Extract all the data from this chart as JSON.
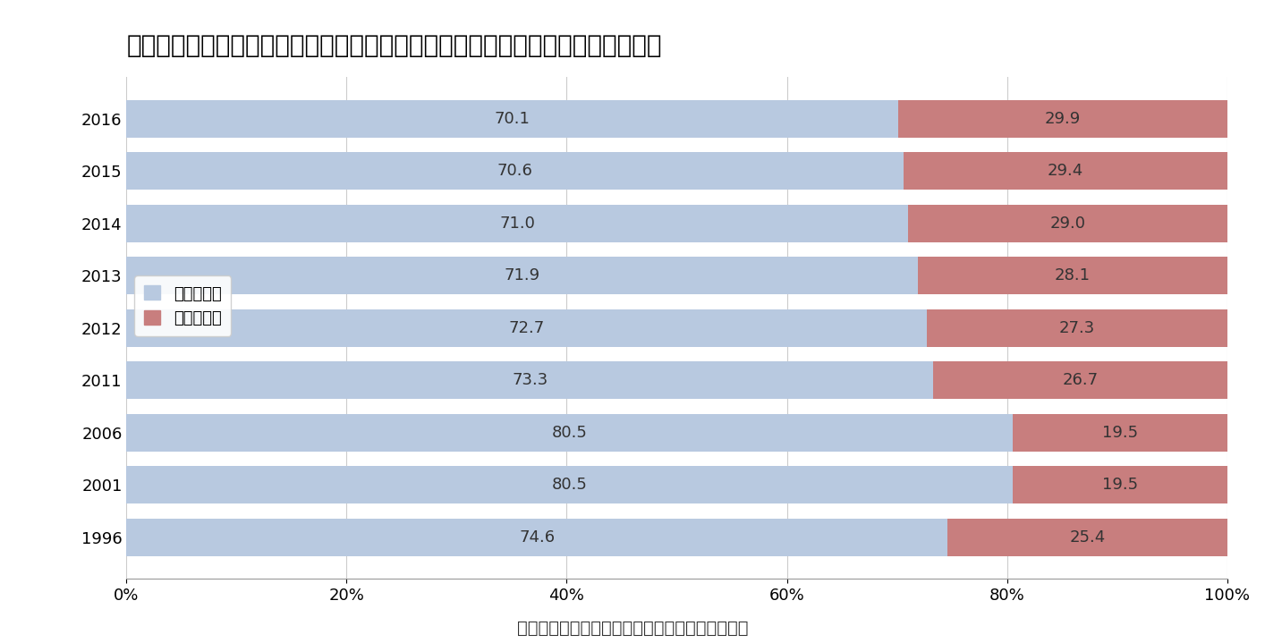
{
  "title": "『図表３』国際結婚における日本人妻カップルと日本人夫カップルの割合の変化",
  "caption": "資料）厄生労働省「人口動態統計」より筆者作成",
  "years": [
    "2016",
    "2015",
    "2014",
    "2013",
    "2012",
    "2011",
    "2006",
    "2001",
    "1996"
  ],
  "husband_japanese": [
    70.1,
    70.6,
    71.0,
    71.9,
    72.7,
    73.3,
    80.5,
    80.5,
    74.6
  ],
  "wife_japanese": [
    29.9,
    29.4,
    29.0,
    28.1,
    27.3,
    26.7,
    19.5,
    19.5,
    25.4
  ],
  "color_husband": "#B8C9E0",
  "color_wife": "#C87E7E",
  "legend_husband": "夫が日本人",
  "legend_wife": "妻が日本人",
  "background_color": "#FFFFFF",
  "title_fontsize": 20,
  "label_fontsize": 13,
  "tick_fontsize": 13,
  "caption_fontsize": 14,
  "legend_fontsize": 13
}
